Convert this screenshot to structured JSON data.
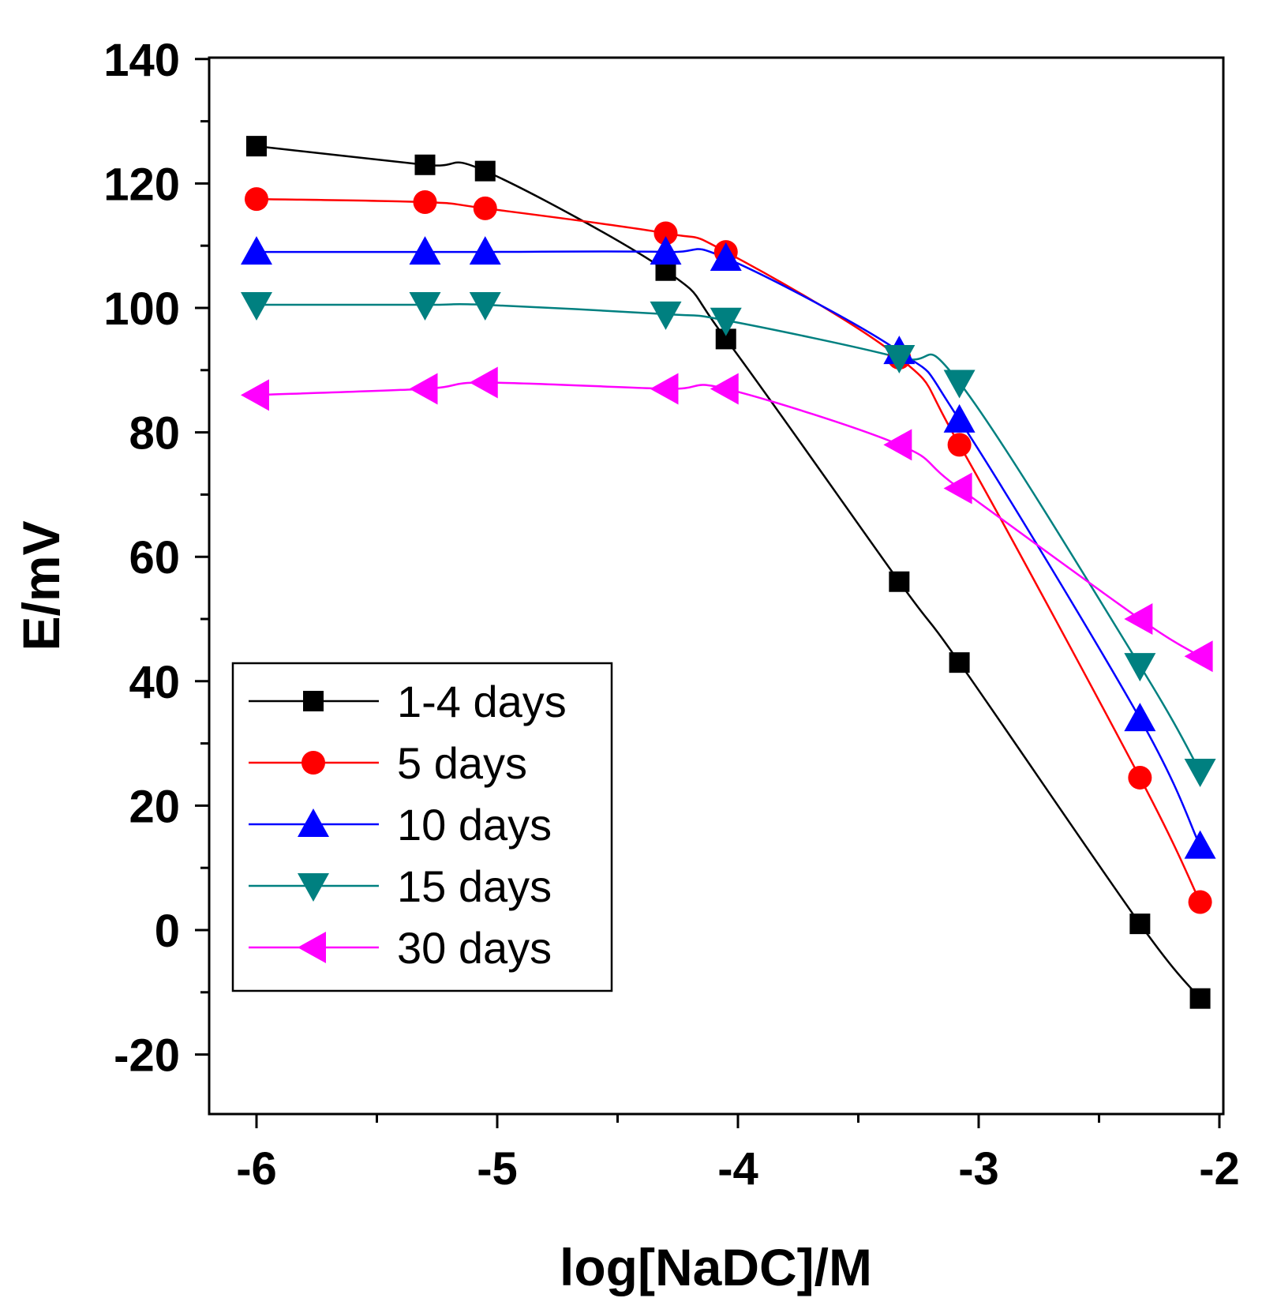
{
  "chart_data": {
    "type": "line",
    "xlabel": "log[NaDC]/M",
    "ylabel": "E/mV",
    "xlim": [
      -6.2,
      -2
    ],
    "ylim": [
      -30,
      140
    ],
    "x_ticks": [
      -6,
      -5,
      -4,
      -3,
      -2
    ],
    "y_ticks": [
      -20,
      0,
      20,
      40,
      60,
      80,
      100,
      120,
      140
    ],
    "x_tick_labels": [
      "-6",
      "-5",
      "-4",
      "-3",
      "-2"
    ],
    "y_tick_labels": [
      "-20",
      "0",
      "20",
      "40",
      "60",
      "80",
      "100",
      "120",
      "140"
    ],
    "grid": false,
    "legend_position": "bottom-left",
    "series": [
      {
        "name": "1-4 days",
        "color": "#000000",
        "marker": "square",
        "points": [
          [
            -6.0,
            126
          ],
          [
            -5.3,
            123
          ],
          [
            -5.05,
            122
          ],
          [
            -4.3,
            106
          ],
          [
            -4.05,
            95
          ],
          [
            -3.33,
            56
          ],
          [
            -3.08,
            43
          ],
          [
            -2.33,
            1
          ],
          [
            -2.08,
            -11
          ]
        ]
      },
      {
        "name": "5 days",
        "color": "#ff0000",
        "marker": "circle",
        "points": [
          [
            -6.0,
            117.5
          ],
          [
            -5.3,
            117
          ],
          [
            -5.05,
            116
          ],
          [
            -4.3,
            112
          ],
          [
            -4.05,
            109
          ],
          [
            -3.33,
            92
          ],
          [
            -3.08,
            78
          ],
          [
            -2.33,
            24.5
          ],
          [
            -2.08,
            4.5
          ]
        ]
      },
      {
        "name": "10 days",
        "color": "#0000ff",
        "marker": "triangle-up",
        "points": [
          [
            -6.0,
            109
          ],
          [
            -5.3,
            109
          ],
          [
            -5.05,
            109
          ],
          [
            -4.3,
            109
          ],
          [
            -4.05,
            108
          ],
          [
            -3.33,
            93
          ],
          [
            -3.08,
            82
          ],
          [
            -2.33,
            34
          ],
          [
            -2.08,
            13.5
          ]
        ]
      },
      {
        "name": "15 days",
        "color": "#008080",
        "marker": "triangle-down",
        "points": [
          [
            -6.0,
            100.5
          ],
          [
            -5.3,
            100.5
          ],
          [
            -5.05,
            100.5
          ],
          [
            -4.3,
            99
          ],
          [
            -4.05,
            98
          ],
          [
            -3.33,
            92
          ],
          [
            -3.08,
            88
          ],
          [
            -2.33,
            42.5
          ],
          [
            -2.08,
            25.5
          ]
        ]
      },
      {
        "name": "30 days",
        "color": "#ff00ff",
        "marker": "triangle-left",
        "points": [
          [
            -6.0,
            86
          ],
          [
            -5.3,
            87
          ],
          [
            -5.05,
            88
          ],
          [
            -4.3,
            87
          ],
          [
            -4.05,
            87
          ],
          [
            -3.33,
            78
          ],
          [
            -3.08,
            71
          ],
          [
            -2.33,
            50
          ],
          [
            -2.08,
            44
          ]
        ]
      }
    ]
  }
}
